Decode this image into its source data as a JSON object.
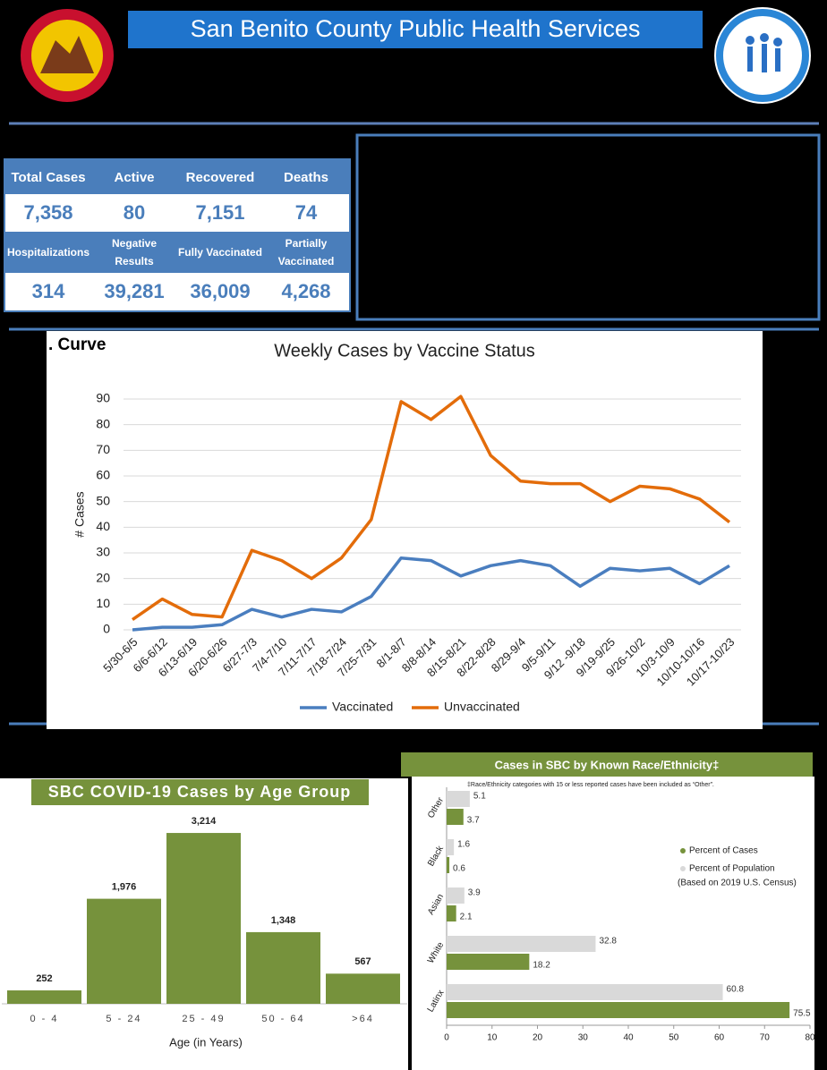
{
  "header": {
    "title": "San Benito County Public Health Services"
  },
  "stats_table": {
    "rows": [
      [
        "Total Cases",
        "Active",
        "Recovered",
        "Deaths"
      ],
      [
        "7,358",
        "80",
        "7,151",
        "74"
      ],
      [
        "Hospitalizations",
        "Negative Results",
        "Fully Vaccinated",
        "Partially Vaccinated"
      ],
      [
        "314",
        "39,281",
        "36,009",
        "4,268"
      ]
    ]
  },
  "chart_data": [
    {
      "type": "line",
      "section_label": ". Curve",
      "title": "Weekly Cases by Vaccine Status",
      "y_label": "# Cases",
      "categories": [
        "5/30-6/5",
        "6/6-6/12",
        "6/13-6/19",
        "6/20-6/26",
        "6/27-7/3",
        "7/4-7/10",
        "7/11-7/17",
        "7/18-7/24",
        "7/25-7/31",
        "8/1-8/7",
        "8/8-8/14",
        "8/15-8/21",
        "8/22-8/28",
        "8/29-9/4",
        "9/5-9/11",
        "9/12 -9/18",
        "9/19-9/25",
        "9/26-10/2",
        "10/3-10/9",
        "10/10-10/16",
        "10/17-10/23"
      ],
      "series": [
        {
          "name": "Vaccinated",
          "color": "#4a7ebf",
          "values": [
            0,
            1,
            1,
            2,
            8,
            5,
            8,
            7,
            13,
            28,
            27,
            21,
            25,
            27,
            25,
            17,
            24,
            23,
            24,
            18,
            25
          ]
        },
        {
          "name": "Unvaccinated",
          "color": "#e36c0a",
          "values": [
            4,
            12,
            6,
            5,
            31,
            27,
            20,
            28,
            43,
            89,
            82,
            91,
            68,
            58,
            57,
            57,
            50,
            56,
            55,
            51,
            42
          ]
        }
      ],
      "ylim": [
        0,
        90
      ],
      "yticks": [
        0,
        10,
        20,
        30,
        40,
        50,
        60,
        70,
        80,
        90
      ],
      "grid": true,
      "legend": "bottom"
    },
    {
      "type": "bar",
      "title": "SBC COVID-19 Cases by Age Group",
      "x_label": "Age (in Years)",
      "categories": [
        "0 - 4",
        "5 - 24",
        "25 - 49",
        "50 - 64",
        ">64"
      ],
      "values": [
        252,
        1976,
        3214,
        1348,
        567
      ],
      "value_labels": [
        "252",
        "1,976",
        "3,214",
        "1,348",
        "567"
      ],
      "color": "#76923c",
      "ylim": [
        0,
        3400
      ]
    },
    {
      "type": "hbar",
      "title": "Cases in SBC by Known Race/Ethnicity‡",
      "note": "‡Race/Ethnicity categories with 15 or less reported cases have been included as “Other”.",
      "legend_note": "(Based on 2019 U.S. Census)",
      "categories": [
        "Other",
        "Black",
        "Asian",
        "White",
        "Latinx"
      ],
      "series": [
        {
          "name": "Percent of Population",
          "color": "#d9d9d9",
          "values": [
            5.1,
            1.6,
            3.9,
            32.8,
            60.8
          ]
        },
        {
          "name": "Percent of Cases",
          "color": "#76923c",
          "values": [
            3.7,
            0.6,
            2.1,
            18.2,
            75.5
          ]
        }
      ],
      "xlim": [
        0,
        80
      ],
      "xticks": [
        0,
        10,
        20,
        30,
        40,
        50,
        60,
        70,
        80
      ],
      "legend": "right"
    }
  ]
}
